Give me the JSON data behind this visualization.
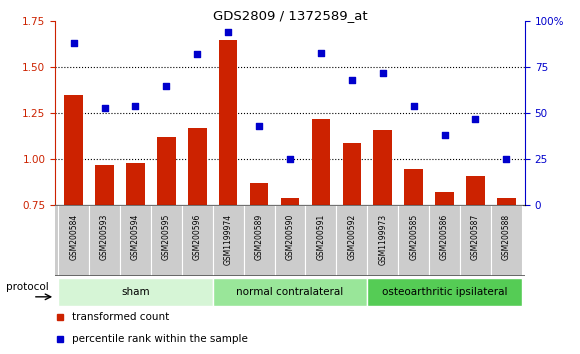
{
  "title": "GDS2809 / 1372589_at",
  "categories": [
    "GSM200584",
    "GSM200593",
    "GSM200594",
    "GSM200595",
    "GSM200596",
    "GSM1199974",
    "GSM200589",
    "GSM200590",
    "GSM200591",
    "GSM200592",
    "GSM1199973",
    "GSM200585",
    "GSM200586",
    "GSM200587",
    "GSM200588"
  ],
  "bar_values": [
    1.35,
    0.97,
    0.98,
    1.12,
    1.17,
    1.65,
    0.87,
    0.79,
    1.22,
    1.09,
    1.16,
    0.95,
    0.82,
    0.91,
    0.79
  ],
  "scatter_values": [
    1.63,
    1.28,
    1.29,
    1.4,
    1.57,
    1.69,
    1.18,
    1.0,
    1.58,
    1.43,
    1.47,
    1.29,
    1.13,
    1.22,
    1.0
  ],
  "bar_color": "#cc2200",
  "scatter_color": "#0000cc",
  "ylim_left": [
    0.75,
    1.75
  ],
  "ylim_right": [
    0,
    100
  ],
  "yticks_left": [
    0.75,
    1.0,
    1.25,
    1.5,
    1.75
  ],
  "yticks_right": [
    0,
    25,
    50,
    75,
    100
  ],
  "ytick_labels_right": [
    "0",
    "25",
    "50",
    "75",
    "100%"
  ],
  "hlines": [
    1.0,
    1.25,
    1.5
  ],
  "groups": [
    {
      "label": "sham",
      "start": 0,
      "end": 5,
      "color": "#d6f5d6"
    },
    {
      "label": "normal contralateral",
      "start": 5,
      "end": 10,
      "color": "#99e699"
    },
    {
      "label": "osteoarthritic ipsilateral",
      "start": 10,
      "end": 15,
      "color": "#55cc55"
    }
  ],
  "legend_items": [
    {
      "label": "transformed count",
      "color": "#cc2200"
    },
    {
      "label": "percentile rank within the sample",
      "color": "#0000cc"
    }
  ],
  "protocol_label": "protocol",
  "background_color": "#ffffff",
  "plot_bg": "#ffffff",
  "tick_bg": "#cccccc",
  "bar_bottom": 0.75
}
